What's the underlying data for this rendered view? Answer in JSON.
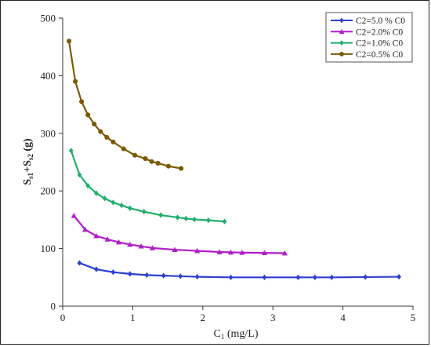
{
  "chart_data": {
    "type": "line",
    "title": "",
    "xlabel": "C",
    "xlabel_sub": "1",
    "xlabel_unit": " (mg/L)",
    "ylabel_main": "S",
    "ylabel_sub1": "s1",
    "ylabel_plus": "+S",
    "ylabel_sub2": "s2",
    "ylabel_unit": " (g)",
    "xlim": [
      0,
      5
    ],
    "ylim": [
      0,
      500
    ],
    "xticks": [
      "0",
      "1",
      "2",
      "3",
      "4",
      "5"
    ],
    "yticks": [
      "0",
      "100",
      "200",
      "300",
      "400",
      "500"
    ],
    "grid": false,
    "legend_position": "top-right",
    "series": [
      {
        "name": "C2=5.0 % C0",
        "color": "#2b3fd1",
        "marker": "diamond",
        "x": [
          0.24,
          0.48,
          0.72,
          0.96,
          1.2,
          1.44,
          1.68,
          1.92,
          2.4,
          2.88,
          3.36,
          3.6,
          3.84,
          4.32,
          4.8
        ],
        "y": [
          75,
          64,
          59,
          56,
          54,
          53,
          52,
          51,
          50,
          50,
          50,
          50,
          50,
          50.5,
          51
        ]
      },
      {
        "name": "C2=2.0% C0",
        "color": "#b01ec9",
        "marker": "triangle",
        "x": [
          0.16,
          0.32,
          0.48,
          0.64,
          0.8,
          0.96,
          1.12,
          1.28,
          1.6,
          1.92,
          2.24,
          2.4,
          2.56,
          2.88,
          3.17
        ],
        "y": [
          157,
          133,
          122,
          116,
          111,
          107,
          104,
          101,
          98,
          96,
          94,
          93.5,
          93,
          92.5,
          92
        ]
      },
      {
        "name": "C2=1.0% C0",
        "color": "#1fae6c",
        "marker": "diamond",
        "x": [
          0.12,
          0.24,
          0.36,
          0.48,
          0.6,
          0.72,
          0.84,
          0.96,
          1.16,
          1.4,
          1.64,
          1.76,
          1.88,
          2.08,
          2.31
        ],
        "y": [
          270,
          228,
          209,
          196,
          187,
          180,
          175,
          170,
          164,
          158,
          154,
          152,
          150.5,
          149,
          147
        ]
      },
      {
        "name": "C2=0.5% C0",
        "color": "#7a5a05",
        "marker": "circle",
        "x": [
          0.09,
          0.18,
          0.27,
          0.36,
          0.45,
          0.54,
          0.63,
          0.72,
          0.87,
          1.03,
          1.18,
          1.27,
          1.36,
          1.51,
          1.69
        ],
        "y": [
          460,
          390,
          355,
          332,
          316,
          303,
          293,
          285,
          273,
          262,
          256,
          251,
          248,
          243,
          239
        ]
      }
    ]
  }
}
